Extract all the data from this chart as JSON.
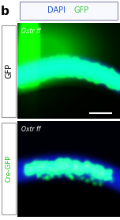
{
  "panel_label": "b",
  "header_text_left": "DAPI",
  "header_text_right": "GFP",
  "header_dapi_color": "#2255cc",
  "header_gfp_color": "#33cc33",
  "header_bg": "#f8f8ff",
  "header_border": "#aaaacc",
  "top_label": "GFP",
  "bottom_label": "Cre-GFP",
  "label_color_top": "#000000",
  "label_color_bot": "#22bb22",
  "italic_text": "Oxtr ff",
  "fig_width": 1.52,
  "fig_height": 2.78,
  "dpi": 100
}
